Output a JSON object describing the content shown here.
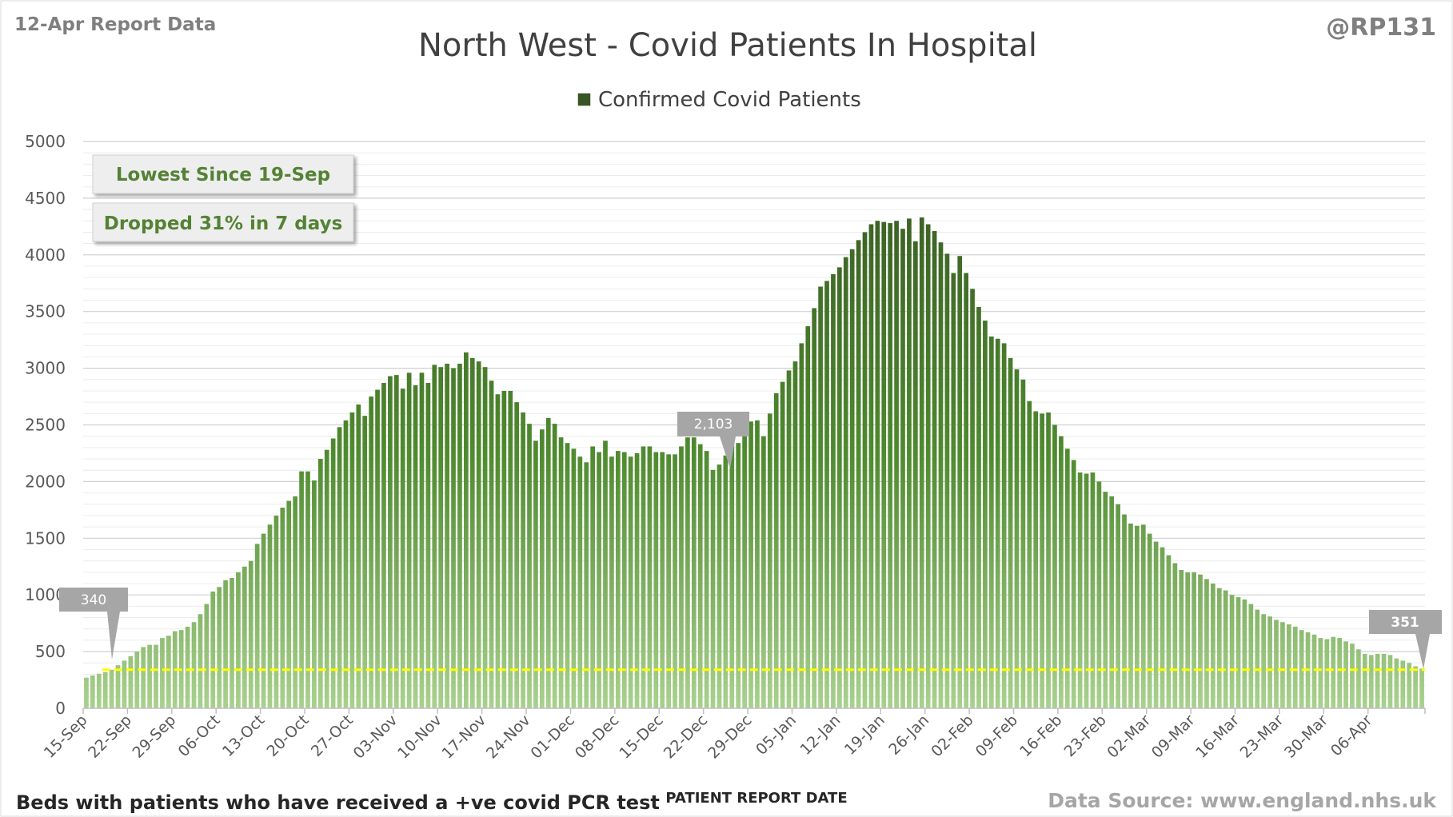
{
  "header": {
    "report_label": "12-Apr Report Data",
    "handle": "@RP131"
  },
  "footer": {
    "note": "Beds with patients who have received a +ve covid PCR test",
    "source": "Data Source: www.england.nhs.uk"
  },
  "callouts": {
    "lowest": "Lowest Since 19-Sep",
    "dropped": "Dropped 31% in 7 days",
    "start_label": "340",
    "mid_label": "2,103",
    "end_label": "351"
  },
  "colors": {
    "bar_top": "#375623",
    "bar_bottom": "#a9d18e",
    "reference_line": "#ffff00",
    "callout_text": "#548235"
  },
  "chart_data": {
    "type": "bar",
    "title": "North West - Covid Patients In Hospital",
    "xlabel": "PATIENT REPORT DATE",
    "ylabel": "",
    "ylim": [
      0,
      5000
    ],
    "yticks": [
      0,
      500,
      1000,
      1500,
      2000,
      2500,
      3000,
      3500,
      4000,
      4500,
      5000
    ],
    "minor_grid_step": 100,
    "legend": {
      "entry": "Confirmed Covid Patients",
      "position": "top"
    },
    "reference_value": 340,
    "tick_labels": [
      "15-Sep",
      "22-Sep",
      "29-Sep",
      "06-Oct",
      "13-Oct",
      "20-Oct",
      "27-Oct",
      "03-Nov",
      "10-Nov",
      "17-Nov",
      "24-Nov",
      "01-Dec",
      "08-Dec",
      "15-Dec",
      "22-Dec",
      "29-Dec",
      "05-Jan",
      "12-Jan",
      "19-Jan",
      "26-Jan",
      "02-Feb",
      "09-Feb",
      "16-Feb",
      "23-Feb",
      "02-Mar",
      "09-Mar",
      "16-Mar",
      "23-Mar",
      "30-Mar",
      "06-Apr"
    ],
    "series": [
      {
        "name": "Confirmed Covid Patients",
        "start_date": "15-Sep",
        "end_date": "12-Apr",
        "values": [
          270,
          290,
          305,
          320,
          340,
          380,
          420,
          460,
          500,
          540,
          560,
          560,
          620,
          640,
          680,
          690,
          720,
          760,
          830,
          920,
          1030,
          1070,
          1130,
          1150,
          1200,
          1250,
          1300,
          1450,
          1540,
          1620,
          1700,
          1770,
          1830,
          1870,
          2090,
          2090,
          2010,
          2200,
          2280,
          2380,
          2480,
          2540,
          2610,
          2680,
          2580,
          2750,
          2810,
          2870,
          2930,
          2940,
          2820,
          2960,
          2850,
          2960,
          2870,
          3030,
          3010,
          3040,
          3000,
          3040,
          3140,
          3090,
          3060,
          3010,
          2890,
          2770,
          2800,
          2800,
          2700,
          2610,
          2510,
          2360,
          2460,
          2560,
          2510,
          2390,
          2340,
          2290,
          2220,
          2170,
          2310,
          2260,
          2360,
          2220,
          2270,
          2260,
          2220,
          2250,
          2310,
          2310,
          2260,
          2260,
          2240,
          2240,
          2310,
          2390,
          2390,
          2330,
          2270,
          2103,
          2150,
          2230,
          2330,
          2340,
          2420,
          2530,
          2540,
          2400,
          2600,
          2780,
          2880,
          2980,
          3060,
          3220,
          3370,
          3530,
          3720,
          3770,
          3830,
          3890,
          3980,
          4050,
          4130,
          4200,
          4270,
          4300,
          4290,
          4280,
          4300,
          4230,
          4320,
          4120,
          4330,
          4270,
          4210,
          4110,
          4010,
          3840,
          3990,
          3840,
          3700,
          3540,
          3420,
          3280,
          3260,
          3220,
          3090,
          2990,
          2900,
          2710,
          2620,
          2600,
          2610,
          2500,
          2400,
          2290,
          2190,
          2080,
          2070,
          2080,
          2000,
          1910,
          1870,
          1800,
          1710,
          1630,
          1610,
          1620,
          1540,
          1470,
          1420,
          1350,
          1280,
          1220,
          1200,
          1200,
          1180,
          1140,
          1100,
          1060,
          1040,
          1000,
          980,
          960,
          920,
          870,
          830,
          810,
          780,
          760,
          740,
          720,
          690,
          670,
          650,
          620,
          610,
          630,
          620,
          590,
          570,
          520,
          480,
          470,
          480,
          480,
          470,
          440,
          420,
          400,
          370,
          351
        ]
      }
    ]
  }
}
